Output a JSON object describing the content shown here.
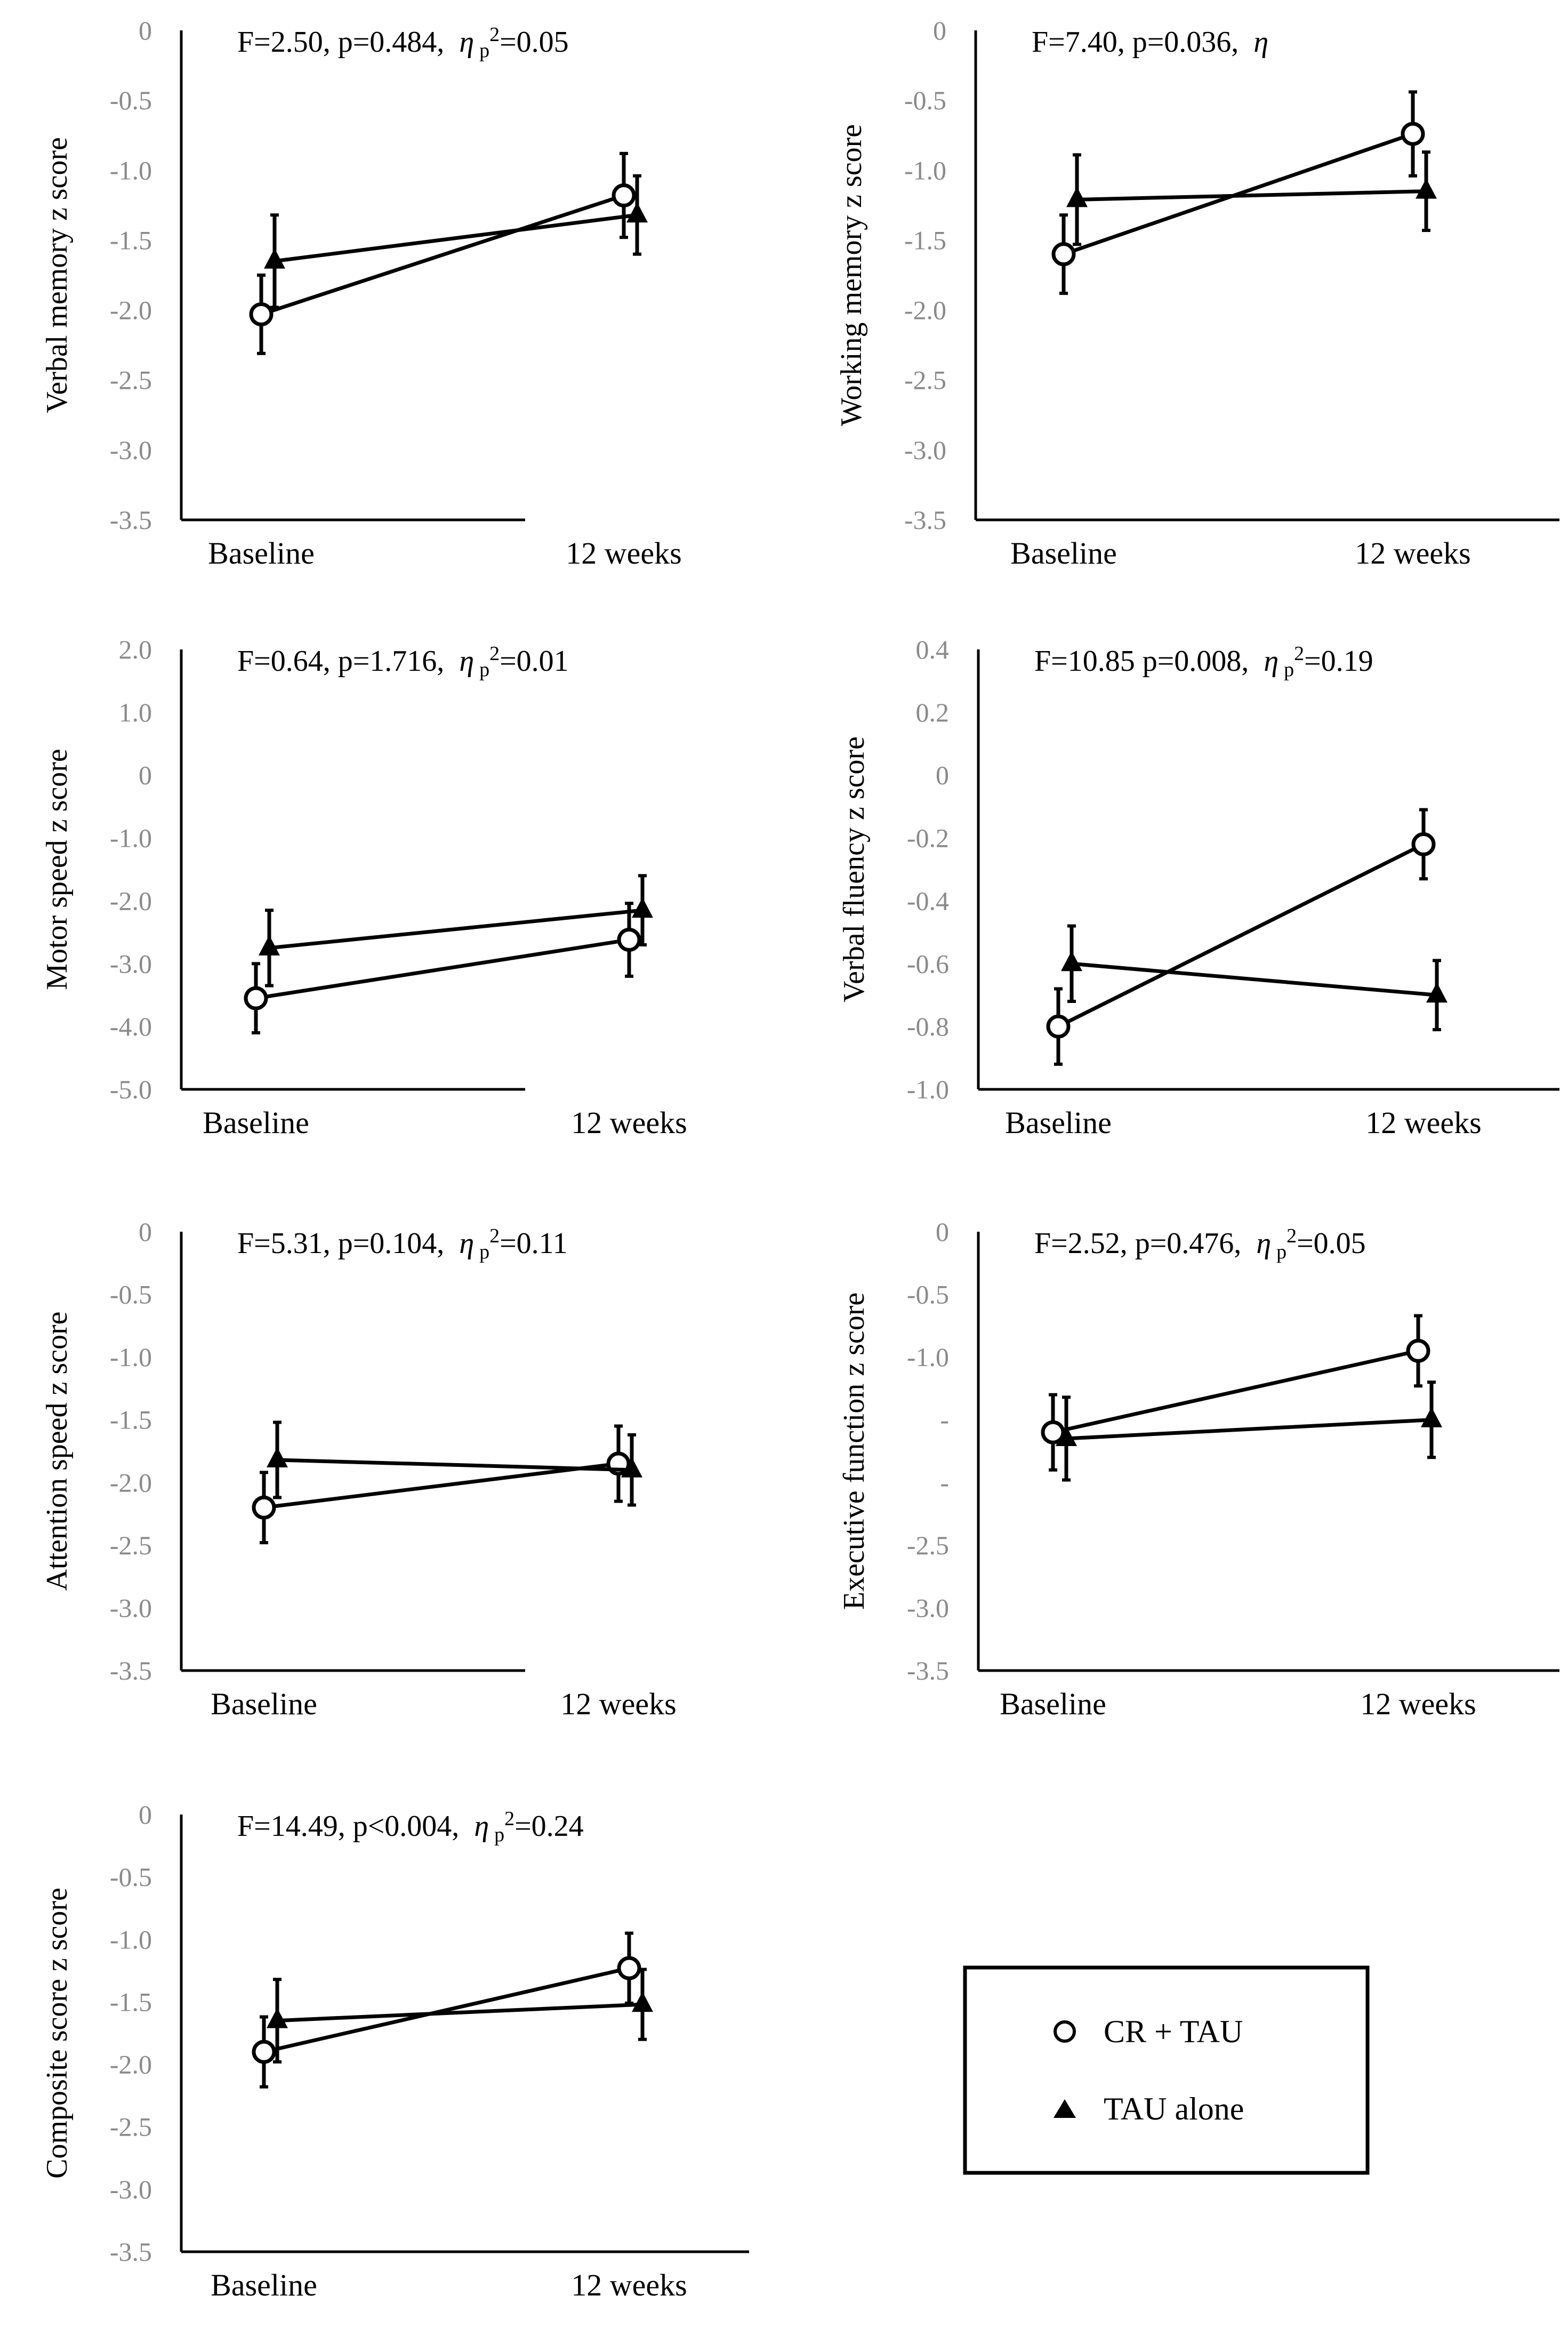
{
  "legend": {
    "items": [
      {
        "label": "CR + TAU",
        "marker": "circle"
      },
      {
        "label": "TAU alone",
        "marker": "triangle"
      }
    ]
  },
  "chart_data": [
    {
      "type": "line",
      "ylabel": "Verbal memory z score",
      "stat": {
        "prefix": "F=2.50, p=0.484,",
        "eta": "η",
        "eta_sub": "p",
        "eta_sup": "2",
        "eta_val": "=0.05"
      },
      "categories": [
        "Baseline",
        "12 weeks"
      ],
      "ylim": [
        -3.5,
        0
      ],
      "yticks": [
        0,
        -0.5,
        -1.0,
        -1.5,
        -2.0,
        -2.5,
        -3.0,
        -3.5
      ],
      "ytick_labels": [
        "0",
        "-0.5",
        "-1.0",
        "-1.5",
        "-2.0",
        "-2.5",
        "-3.0",
        "-3.5"
      ],
      "series": [
        {
          "name": "CR + TAU",
          "marker": "circle",
          "values": [
            -2.03,
            -1.18
          ],
          "errors": [
            0.28,
            0.3
          ]
        },
        {
          "name": "TAU alone",
          "marker": "triangle",
          "values": [
            -1.65,
            -1.32
          ],
          "errors": [
            0.33,
            0.28
          ]
        }
      ]
    },
    {
      "type": "line",
      "ylabel": "Working memory z score",
      "stat": {
        "prefix": "F=7.40, p=0.036,",
        "eta": "η",
        "eta_sub": "",
        "eta_sup": "",
        "eta_val": ""
      },
      "categories": [
        "Baseline",
        "12 weeks"
      ],
      "ylim": [
        -3.5,
        0
      ],
      "yticks": [
        0,
        -0.5,
        -1.0,
        -1.5,
        -2.0,
        -2.5,
        -3.0,
        -3.5
      ],
      "ytick_labels": [
        "0",
        "-0.5",
        "-1.0",
        "-1.5",
        "-2.0",
        "-2.5",
        "-3.0",
        "-3.5"
      ],
      "series": [
        {
          "name": "CR + TAU",
          "marker": "circle",
          "values": [
            -1.6,
            -0.74
          ],
          "errors": [
            0.28,
            0.3
          ]
        },
        {
          "name": "TAU alone",
          "marker": "triangle",
          "values": [
            -1.21,
            -1.15
          ],
          "errors": [
            0.32,
            0.28
          ]
        }
      ]
    },
    {
      "type": "line",
      "ylabel": "Motor speed z score",
      "stat": {
        "prefix": "F=0.64, p=1.716,",
        "eta": "η",
        "eta_sub": "p",
        "eta_sup": "2",
        "eta_val": "=0.01"
      },
      "categories": [
        "Baseline",
        "12 weeks"
      ],
      "ylim": [
        -5.0,
        2.0
      ],
      "yticks": [
        2.0,
        1.0,
        0,
        -1.0,
        -2.0,
        -3.0,
        -4.0,
        -5.0
      ],
      "ytick_labels": [
        "2.0",
        "1.0",
        "0",
        "-1.0",
        "-2.0",
        "-3.0",
        "-4.0",
        "-5.0"
      ],
      "series": [
        {
          "name": "CR + TAU",
          "marker": "circle",
          "values": [
            -3.55,
            -2.62
          ],
          "errors": [
            0.55,
            0.58
          ]
        },
        {
          "name": "TAU alone",
          "marker": "triangle",
          "values": [
            -2.75,
            -2.15
          ],
          "errors": [
            0.6,
            0.55
          ]
        }
      ]
    },
    {
      "type": "line",
      "ylabel": "Verbal fluency z score",
      "stat": {
        "prefix": "F=10.85 p=0.008,",
        "eta": "η",
        "eta_sub": "p",
        "eta_sup": "2",
        "eta_val": "=0.19"
      },
      "categories": [
        "Baseline",
        "12 weeks"
      ],
      "ylim": [
        -1.0,
        0.4
      ],
      "yticks": [
        0.4,
        0.2,
        0,
        -0.2,
        -0.4,
        -0.6,
        -0.8,
        -1.0
      ],
      "ytick_labels": [
        "0.4",
        "0.2",
        "0",
        "-0.2",
        "-0.4",
        "-0.6",
        "-0.8",
        "-1.0"
      ],
      "series": [
        {
          "name": "CR + TAU",
          "marker": "circle",
          "values": [
            -0.8,
            -0.22
          ],
          "errors": [
            0.12,
            0.11
          ]
        },
        {
          "name": "TAU alone",
          "marker": "triangle",
          "values": [
            -0.6,
            -0.7
          ],
          "errors": [
            0.12,
            0.11
          ]
        }
      ]
    },
    {
      "type": "line",
      "ylabel": "Attention speed z score",
      "stat": {
        "prefix": "F=5.31, p=0.104,",
        "eta": "η",
        "eta_sub": "p",
        "eta_sup": "2",
        "eta_val": "=0.11"
      },
      "categories": [
        "Baseline",
        "12 weeks"
      ],
      "ylim": [
        -3.5,
        0
      ],
      "yticks": [
        0,
        -0.5,
        -1.0,
        -1.5,
        -2.0,
        -2.5,
        -3.0,
        -3.5
      ],
      "ytick_labels": [
        "0",
        "-0.5",
        "-1.0",
        "-1.5",
        "-2.0",
        "-2.5",
        "-3.0",
        "-3.5"
      ],
      "series": [
        {
          "name": "CR + TAU",
          "marker": "circle",
          "values": [
            -2.2,
            -1.85
          ],
          "errors": [
            0.28,
            0.3
          ]
        },
        {
          "name": "TAU alone",
          "marker": "triangle",
          "values": [
            -1.82,
            -1.9
          ],
          "errors": [
            0.3,
            0.28
          ]
        }
      ]
    },
    {
      "type": "line",
      "ylabel": "Executive function z score",
      "stat": {
        "prefix": "F=2.52, p=0.476,",
        "eta": "η",
        "eta_sub": "p",
        "eta_sup": "2",
        "eta_val": "=0.05"
      },
      "categories": [
        "Baseline",
        "12 weeks"
      ],
      "ylim": [
        -3.5,
        0
      ],
      "yticks": [
        0,
        -0.5,
        -1.0,
        -1.5,
        -2.0,
        -2.5,
        -3.0,
        -3.5
      ],
      "ytick_labels": [
        "0",
        "-0.5",
        "-1.0",
        "-",
        "-",
        "-2.5",
        "-3.0",
        "-3.5"
      ],
      "series": [
        {
          "name": "CR + TAU",
          "marker": "circle",
          "values": [
            -1.6,
            -0.95
          ],
          "errors": [
            0.3,
            0.28
          ]
        },
        {
          "name": "TAU alone",
          "marker": "triangle",
          "values": [
            -1.65,
            -1.5
          ],
          "errors": [
            0.33,
            0.3
          ]
        }
      ]
    },
    {
      "type": "line",
      "ylabel": "Composite score z score",
      "stat": {
        "prefix": "F=14.49, p<0.004,",
        "eta": "η",
        "eta_sub": "p",
        "eta_sup": "2",
        "eta_val": "=0.24"
      },
      "categories": [
        "Baseline",
        "12 weeks"
      ],
      "ylim": [
        -3.5,
        0
      ],
      "yticks": [
        0,
        -0.5,
        -1.0,
        -1.5,
        -2.0,
        -2.5,
        -3.0,
        -3.5
      ],
      "ytick_labels": [
        "0",
        "-0.5",
        "-1.0",
        "-1.5",
        "-2.0",
        "-2.5",
        "-3.0",
        "-3.5"
      ],
      "series": [
        {
          "name": "CR + TAU",
          "marker": "circle",
          "values": [
            -1.9,
            -1.23
          ],
          "errors": [
            0.28,
            0.28
          ]
        },
        {
          "name": "TAU alone",
          "marker": "triangle",
          "values": [
            -1.65,
            -1.52
          ],
          "errors": [
            0.33,
            0.28
          ]
        }
      ]
    }
  ]
}
